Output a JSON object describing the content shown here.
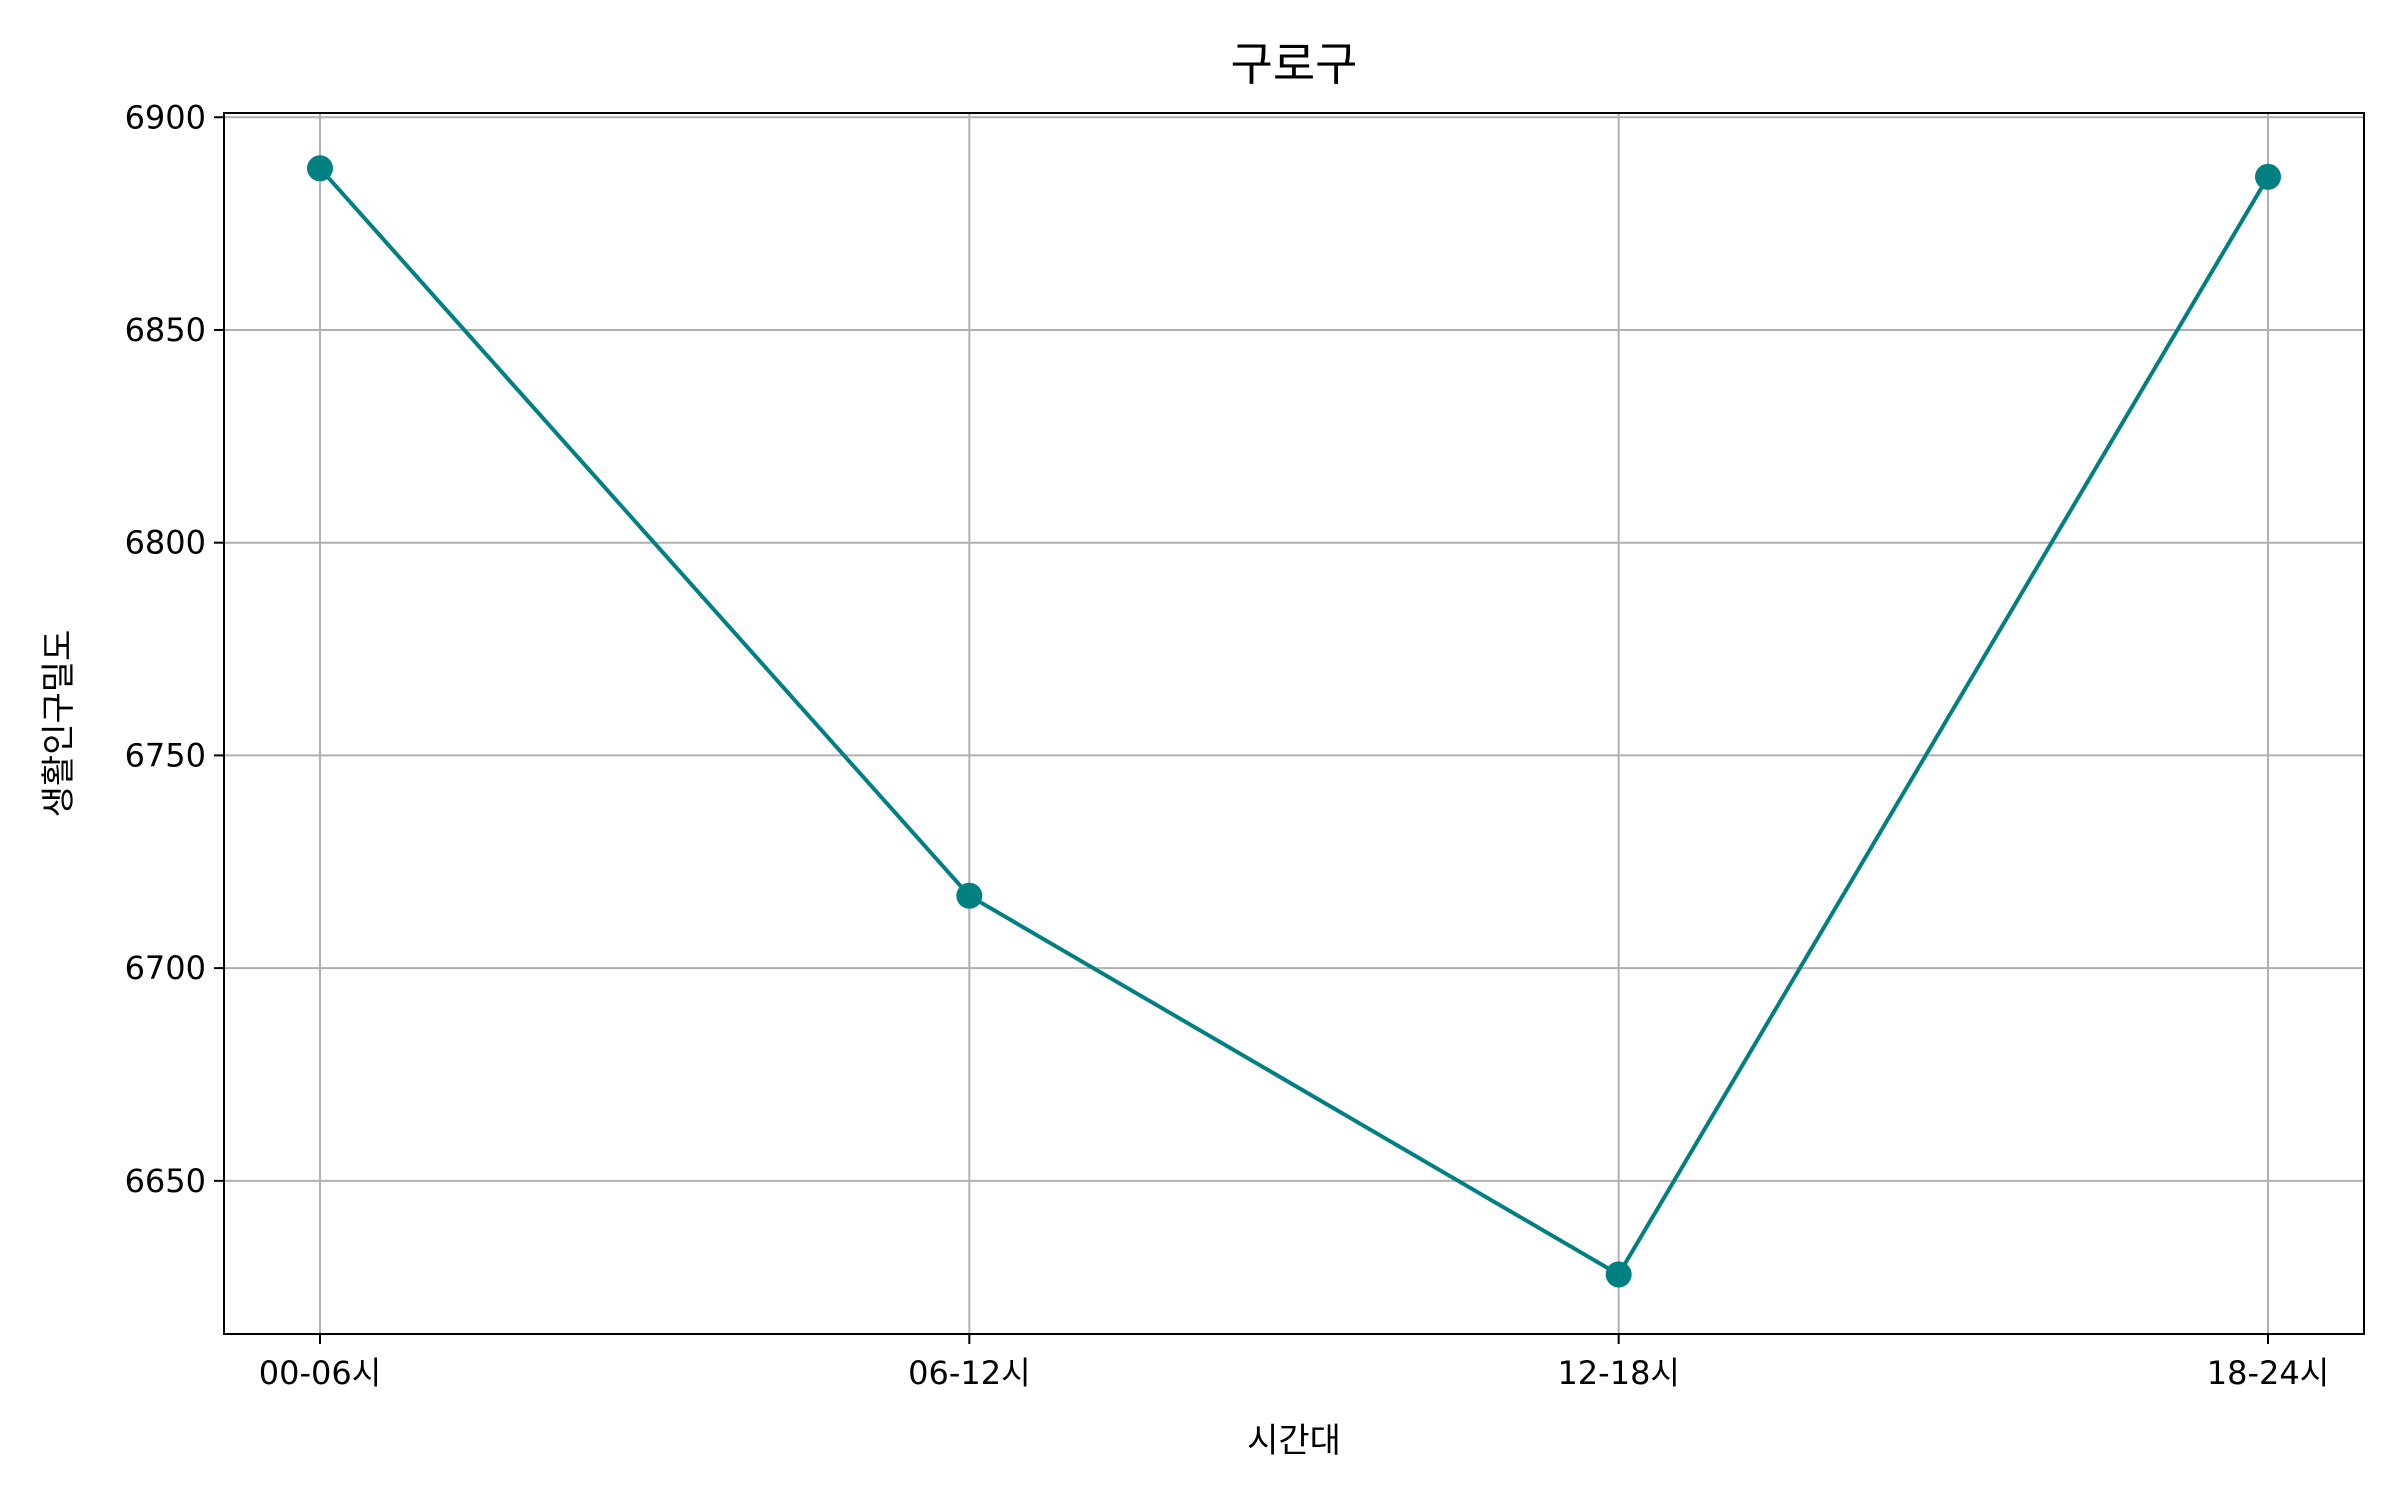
{
  "chart_data": {
    "type": "line",
    "title": "구로구",
    "xlabel": "시간대",
    "ylabel": "생활인구밀도",
    "categories": [
      "00-06시",
      "06-12시",
      "12-18시",
      "18-24시"
    ],
    "series": [
      {
        "values": [
          6888,
          6717,
          6628,
          6886
        ],
        "color": "#008080",
        "marker": "circle"
      }
    ],
    "ylim": [
      6614,
      6901
    ],
    "yticks": [
      6650,
      6700,
      6750,
      6800,
      6850,
      6900
    ],
    "grid": true
  }
}
